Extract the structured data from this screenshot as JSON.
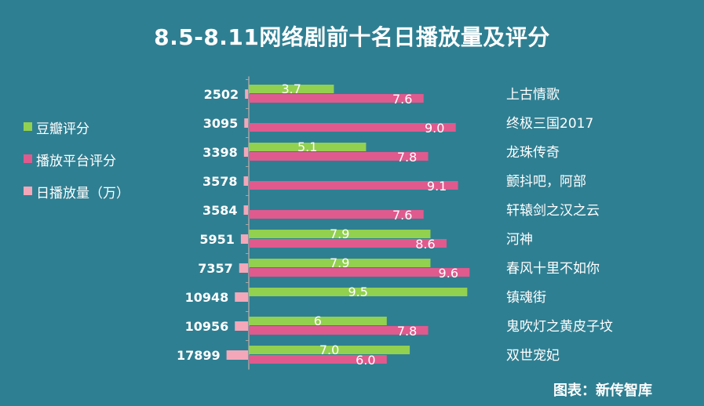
{
  "title": "8.5-8.11网络剧前十名日播放量及评分",
  "source": "图表：新传智库",
  "colors": {
    "background": "#2f7f92",
    "douban": "#92d050",
    "platform": "#e05a8e",
    "plays": "#f4a7b9"
  },
  "legend": [
    {
      "label": "豆瓣评分",
      "color": "#92d050"
    },
    {
      "label": "播放平台评分",
      "color": "#e05a8e"
    },
    {
      "label": "日播放量（万）",
      "color": "#f4a7b9"
    }
  ],
  "chart_data": {
    "type": "bar",
    "orientation": "horizontal",
    "title": "8.5-8.11网络剧前十名日播放量及评分",
    "categories": [
      "上古情歌",
      "终极三国2017",
      "龙珠传奇",
      "颤抖吧，阿部",
      "轩辕剑之汉之云",
      "河神",
      "春风十里不如你",
      "镇魂街",
      "鬼吹灯之黄皮子坟",
      "双世宠妃"
    ],
    "series": [
      {
        "name": "豆瓣评分",
        "values": [
          3.7,
          null,
          5.1,
          null,
          null,
          7.9,
          7.9,
          9.5,
          6,
          7.0
        ],
        "labels": [
          "3.7",
          "",
          "5.1",
          "",
          "",
          "7.9",
          "7.9",
          "9.5",
          "6",
          "7.0"
        ]
      },
      {
        "name": "播放平台评分",
        "values": [
          7.6,
          9.0,
          7.8,
          9.1,
          7.6,
          8.6,
          9.6,
          null,
          7.8,
          6.0
        ],
        "labels": [
          "7.6",
          "9.0",
          "7.8",
          "9.1",
          "7.6",
          "8.6",
          "9.6",
          "",
          "7.8",
          "6.0"
        ]
      },
      {
        "name": "日播放量（万）",
        "values": [
          2502,
          3095,
          3398,
          3578,
          3584,
          5951,
          7357,
          10948,
          10956,
          17899
        ]
      }
    ],
    "score_range": [
      0,
      10
    ],
    "plays_range": [
      0,
      60000
    ],
    "legend_position": "left",
    "grid": false
  }
}
